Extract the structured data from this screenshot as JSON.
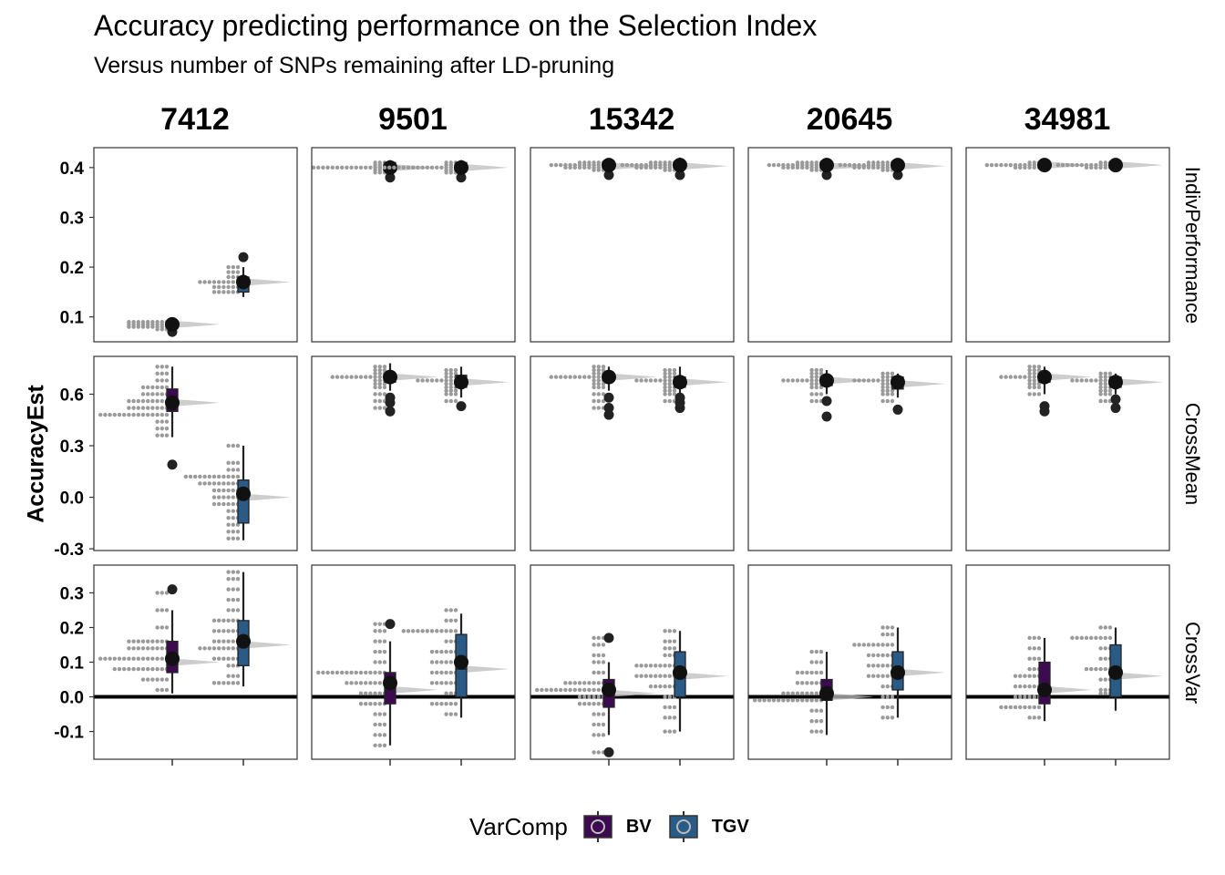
{
  "title": "Accuracy predicting performance on the Selection Index",
  "subtitle": "Versus number of SNPs remaining after LD-pruning",
  "colors": {
    "BV": "#3d0a52",
    "TGV": "#2a5a86",
    "dots": "#9a9a9a",
    "violin": "#bcbcbc"
  },
  "chart_data": {
    "type": "boxplot-dotplot-facets",
    "ylabel": "AccuracyEst",
    "columns": [
      "7412",
      "9501",
      "15342",
      "20645",
      "34981"
    ],
    "rows": [
      "IndivPerformance",
      "CrossMean",
      "CrossVar"
    ],
    "row_ylim": [
      [
        0.05,
        0.44
      ],
      [
        -0.31,
        0.82
      ],
      [
        -0.18,
        0.38
      ]
    ],
    "row_ticks": [
      [
        0.1,
        0.2,
        0.3,
        0.4
      ],
      [
        -0.3,
        0.0,
        0.3,
        0.6
      ],
      [
        -0.1,
        0.0,
        0.1,
        0.2,
        0.3
      ]
    ],
    "tick_labels": [
      [
        "0.1",
        "0.2",
        "0.3",
        "0.4"
      ],
      [
        "-0.3",
        "0.0",
        "0.3",
        "0.6"
      ],
      [
        "-0.1",
        "0.0",
        "0.1",
        "0.2",
        "0.3"
      ]
    ],
    "reference_line": {
      "row": "CrossVar",
      "y": 0.0
    },
    "legend": {
      "title": "VarComp",
      "entries": [
        "BV",
        "TGV"
      ],
      "position": "bottom"
    },
    "panels": [
      [
        {
          "BV": {
            "q1": 0.08,
            "med": 0.085,
            "q3": 0.09,
            "wlo": 0.07,
            "whi": 0.095,
            "mean": 0.085,
            "out": [
              0.07
            ],
            "dots": [
              0.08,
              0.085,
              0.09,
              0.08,
              0.085,
              0.09,
              0.075,
              0.085,
              0.09,
              0.08
            ]
          },
          "TGV": {
            "q1": 0.15,
            "med": 0.17,
            "q3": 0.18,
            "wlo": 0.14,
            "whi": 0.2,
            "mean": 0.17,
            "out": [
              0.22
            ],
            "dots": [
              0.15,
              0.16,
              0.17,
              0.17,
              0.18,
              0.16,
              0.17,
              0.19,
              0.2,
              0.15
            ]
          }
        },
        {
          "BV": {
            "q1": 0.395,
            "med": 0.4,
            "q3": 0.41,
            "wlo": 0.385,
            "whi": 0.415,
            "mean": 0.4,
            "out": [
              0.38
            ],
            "dots": [
              0.4,
              0.4,
              0.4,
              0.405,
              0.395,
              0.41,
              0.4,
              0.39,
              0.4,
              0.4
            ]
          },
          "TGV": {
            "q1": 0.395,
            "med": 0.4,
            "q3": 0.41,
            "wlo": 0.385,
            "whi": 0.415,
            "mean": 0.4,
            "out": [
              0.38
            ],
            "dots": [
              0.4,
              0.4,
              0.4,
              0.405,
              0.395,
              0.41,
              0.4,
              0.39,
              0.4,
              0.4
            ]
          }
        },
        {
          "BV": {
            "q1": 0.398,
            "med": 0.403,
            "q3": 0.41,
            "wlo": 0.39,
            "whi": 0.415,
            "mean": 0.405,
            "out": [
              0.385
            ],
            "dots": [
              0.405,
              0.4,
              0.405,
              0.41,
              0.4,
              0.395,
              0.405,
              0.4,
              0.405,
              0.41
            ]
          },
          "TGV": {
            "q1": 0.398,
            "med": 0.403,
            "q3": 0.41,
            "wlo": 0.39,
            "whi": 0.42,
            "mean": 0.405,
            "out": [
              0.385
            ],
            "dots": [
              0.405,
              0.4,
              0.405,
              0.41,
              0.4,
              0.395,
              0.405,
              0.4,
              0.405,
              0.41
            ]
          }
        },
        {
          "BV": {
            "q1": 0.398,
            "med": 0.403,
            "q3": 0.41,
            "wlo": 0.39,
            "whi": 0.415,
            "mean": 0.405,
            "out": [
              0.385
            ],
            "dots": [
              0.405,
              0.4,
              0.405,
              0.41,
              0.4,
              0.395,
              0.405,
              0.4,
              0.405,
              0.41
            ]
          },
          "TGV": {
            "q1": 0.398,
            "med": 0.403,
            "q3": 0.41,
            "wlo": 0.39,
            "whi": 0.415,
            "mean": 0.405,
            "out": [
              0.385
            ],
            "dots": [
              0.405,
              0.4,
              0.405,
              0.41,
              0.4,
              0.395,
              0.405,
              0.4,
              0.405,
              0.41
            ]
          }
        },
        {
          "BV": {
            "q1": 0.4,
            "med": 0.405,
            "q3": 0.408,
            "wlo": 0.398,
            "whi": 0.41,
            "mean": 0.405,
            "out": [],
            "dots": [
              0.405,
              0.405,
              0.4,
              0.41,
              0.405,
              0.4,
              0.405
            ]
          },
          "TGV": {
            "q1": 0.4,
            "med": 0.405,
            "q3": 0.408,
            "wlo": 0.398,
            "whi": 0.41,
            "mean": 0.405,
            "out": [],
            "dots": [
              0.405,
              0.405,
              0.4,
              0.41,
              0.405,
              0.4,
              0.405
            ]
          }
        }
      ],
      [
        {
          "BV": {
            "q1": 0.5,
            "med": 0.55,
            "q3": 0.63,
            "wlo": 0.35,
            "whi": 0.76,
            "mean": 0.55,
            "out": [
              0.19
            ],
            "dots": [
              0.48,
              0.48,
              0.48,
              0.48,
              0.48,
              0.52,
              0.52,
              0.52,
              0.56,
              0.56,
              0.56,
              0.6,
              0.6,
              0.64,
              0.64,
              0.68,
              0.72,
              0.76,
              0.44,
              0.4,
              0.36
            ]
          },
          "TGV": {
            "q1": -0.15,
            "med": 0.0,
            "q3": 0.1,
            "wlo": -0.25,
            "whi": 0.3,
            "mean": 0.02,
            "out": [],
            "dots": [
              0.12,
              0.12,
              0.12,
              0.12,
              0.08,
              0.08,
              0.08,
              0.04,
              0.04,
              0.0,
              0.0,
              -0.04,
              -0.04,
              -0.08,
              -0.12,
              -0.16,
              -0.2,
              0.16,
              0.2,
              0.3,
              -0.24
            ]
          }
        },
        {
          "BV": {
            "q1": 0.67,
            "med": 0.7,
            "q3": 0.72,
            "wlo": 0.62,
            "whi": 0.78,
            "mean": 0.7,
            "out": [
              0.5,
              0.55,
              0.58
            ],
            "dots": [
              0.7,
              0.7,
              0.7,
              0.7,
              0.72,
              0.68,
              0.66,
              0.64,
              0.6,
              0.56,
              0.52,
              0.74,
              0.76
            ]
          },
          "TGV": {
            "q1": 0.64,
            "med": 0.67,
            "q3": 0.71,
            "wlo": 0.58,
            "whi": 0.76,
            "mean": 0.67,
            "out": [
              0.53
            ],
            "dots": [
              0.68,
              0.68,
              0.68,
              0.66,
              0.64,
              0.62,
              0.6,
              0.56,
              0.7,
              0.72,
              0.74
            ]
          }
        },
        {
          "BV": {
            "q1": 0.68,
            "med": 0.7,
            "q3": 0.72,
            "wlo": 0.62,
            "whi": 0.76,
            "mean": 0.7,
            "out": [
              0.48,
              0.52,
              0.58
            ],
            "dots": [
              0.7,
              0.7,
              0.7,
              0.7,
              0.72,
              0.68,
              0.66,
              0.64,
              0.6,
              0.56,
              0.52,
              0.74,
              0.76
            ]
          },
          "TGV": {
            "q1": 0.64,
            "med": 0.67,
            "q3": 0.7,
            "wlo": 0.58,
            "whi": 0.76,
            "mean": 0.67,
            "out": [
              0.52,
              0.55,
              0.58
            ],
            "dots": [
              0.68,
              0.68,
              0.68,
              0.66,
              0.64,
              0.62,
              0.6,
              0.56,
              0.7,
              0.72,
              0.74
            ]
          }
        },
        {
          "BV": {
            "q1": 0.65,
            "med": 0.68,
            "q3": 0.7,
            "wlo": 0.6,
            "whi": 0.74,
            "mean": 0.68,
            "out": [
              0.47,
              0.56
            ],
            "dots": [
              0.68,
              0.68,
              0.68,
              0.7,
              0.66,
              0.64,
              0.6,
              0.56,
              0.72,
              0.74
            ]
          },
          "TGV": {
            "q1": 0.63,
            "med": 0.66,
            "q3": 0.7,
            "wlo": 0.58,
            "whi": 0.72,
            "mean": 0.67,
            "out": [
              0.51
            ],
            "dots": [
              0.68,
              0.68,
              0.68,
              0.66,
              0.64,
              0.62,
              0.6,
              0.56,
              0.7,
              0.72
            ]
          }
        },
        {
          "BV": {
            "q1": 0.67,
            "med": 0.7,
            "q3": 0.72,
            "wlo": 0.6,
            "whi": 0.76,
            "mean": 0.7,
            "out": [
              0.5,
              0.53
            ],
            "dots": [
              0.7,
              0.7,
              0.7,
              0.72,
              0.68,
              0.66,
              0.64,
              0.6,
              0.74,
              0.76
            ]
          },
          "TGV": {
            "q1": 0.64,
            "med": 0.67,
            "q3": 0.7,
            "wlo": 0.6,
            "whi": 0.72,
            "mean": 0.67,
            "out": [
              0.52,
              0.57
            ],
            "dots": [
              0.68,
              0.68,
              0.68,
              0.66,
              0.64,
              0.62,
              0.6,
              0.56,
              0.7,
              0.72
            ]
          }
        }
      ],
      [
        {
          "BV": {
            "q1": 0.07,
            "med": 0.1,
            "q3": 0.16,
            "wlo": 0.01,
            "whi": 0.25,
            "mean": 0.11,
            "out": [
              0.31
            ],
            "dots": [
              0.08,
              0.08,
              0.08,
              0.08,
              0.11,
              0.11,
              0.11,
              0.11,
              0.11,
              0.14,
              0.14,
              0.14,
              0.16,
              0.16,
              0.16,
              0.05,
              0.05,
              0.02,
              0.2,
              0.25,
              0.3
            ]
          },
          "TGV": {
            "q1": 0.09,
            "med": 0.15,
            "q3": 0.22,
            "wlo": 0.03,
            "whi": 0.36,
            "mean": 0.16,
            "out": [],
            "dots": [
              0.04,
              0.04,
              0.06,
              0.09,
              0.11,
              0.11,
              0.14,
              0.14,
              0.14,
              0.16,
              0.16,
              0.19,
              0.19,
              0.22,
              0.22,
              0.25,
              0.28,
              0.31,
              0.34,
              0.36
            ]
          }
        },
        {
          "BV": {
            "q1": -0.02,
            "med": 0.02,
            "q3": 0.07,
            "wlo": -0.14,
            "whi": 0.16,
            "mean": 0.04,
            "out": [
              0.21
            ],
            "dots": [
              0.07,
              0.07,
              0.07,
              0.07,
              0.07,
              0.04,
              0.04,
              0.04,
              0.01,
              0.01,
              -0.02,
              -0.02,
              -0.05,
              -0.08,
              -0.11,
              -0.14,
              0.1,
              0.13,
              0.16,
              0.19,
              0.21
            ]
          },
          "TGV": {
            "q1": 0.0,
            "med": 0.08,
            "q3": 0.18,
            "wlo": -0.06,
            "whi": 0.24,
            "mean": 0.1,
            "out": [],
            "dots": [
              0.19,
              0.19,
              0.19,
              0.19,
              0.13,
              0.13,
              0.1,
              0.1,
              0.07,
              0.07,
              0.04,
              0.04,
              0.01,
              -0.02,
              -0.02,
              -0.05,
              0.16,
              0.22,
              0.25
            ]
          }
        },
        {
          "BV": {
            "q1": -0.03,
            "med": 0.01,
            "q3": 0.05,
            "wlo": -0.11,
            "whi": 0.1,
            "mean": 0.02,
            "out": [
              0.17,
              -0.16
            ],
            "dots": [
              0.02,
              0.02,
              0.02,
              0.02,
              0.02,
              0.04,
              0.04,
              0.04,
              0.0,
              0.0,
              -0.02,
              -0.02,
              -0.05,
              -0.08,
              -0.11,
              0.07,
              0.1,
              0.12,
              0.15,
              0.17,
              -0.16
            ]
          },
          "TGV": {
            "q1": 0.0,
            "med": 0.06,
            "q3": 0.13,
            "wlo": -0.1,
            "whi": 0.19,
            "mean": 0.07,
            "out": [],
            "dots": [
              0.09,
              0.09,
              0.09,
              0.06,
              0.06,
              0.06,
              0.03,
              0.03,
              0.0,
              -0.03,
              -0.06,
              -0.1,
              0.12,
              0.14,
              0.16,
              0.19
            ]
          }
        },
        {
          "BV": {
            "q1": -0.01,
            "med": 0.0,
            "q3": 0.05,
            "wlo": -0.11,
            "whi": 0.13,
            "mean": 0.01,
            "out": [],
            "dots": [
              -0.01,
              -0.01,
              -0.01,
              -0.01,
              -0.01,
              0.01,
              0.01,
              0.01,
              0.04,
              0.04,
              0.07,
              0.07,
              0.1,
              0.13,
              -0.04,
              -0.07,
              -0.1
            ]
          },
          "TGV": {
            "q1": 0.02,
            "med": 0.07,
            "q3": 0.13,
            "wlo": -0.06,
            "whi": 0.2,
            "mean": 0.07,
            "out": [],
            "dots": [
              0.15,
              0.15,
              0.15,
              0.12,
              0.12,
              0.09,
              0.09,
              0.06,
              0.06,
              0.03,
              0.0,
              -0.03,
              -0.06,
              0.2,
              0.18
            ]
          }
        },
        {
          "BV": {
            "q1": -0.02,
            "med": 0.02,
            "q3": 0.1,
            "wlo": -0.07,
            "whi": 0.17,
            "mean": 0.02,
            "out": [],
            "dots": [
              -0.03,
              -0.03,
              -0.03,
              0.0,
              0.0,
              0.03,
              0.03,
              0.06,
              0.06,
              0.08,
              0.11,
              0.14,
              0.17,
              -0.06
            ]
          },
          "TGV": {
            "q1": 0.0,
            "med": 0.06,
            "q3": 0.15,
            "wlo": -0.04,
            "whi": 0.2,
            "mean": 0.07,
            "out": [],
            "dots": [
              0.17,
              0.17,
              0.17,
              0.14,
              0.11,
              0.08,
              0.08,
              0.05,
              0.02,
              0.01,
              0.2
            ]
          }
        }
      ]
    ]
  }
}
